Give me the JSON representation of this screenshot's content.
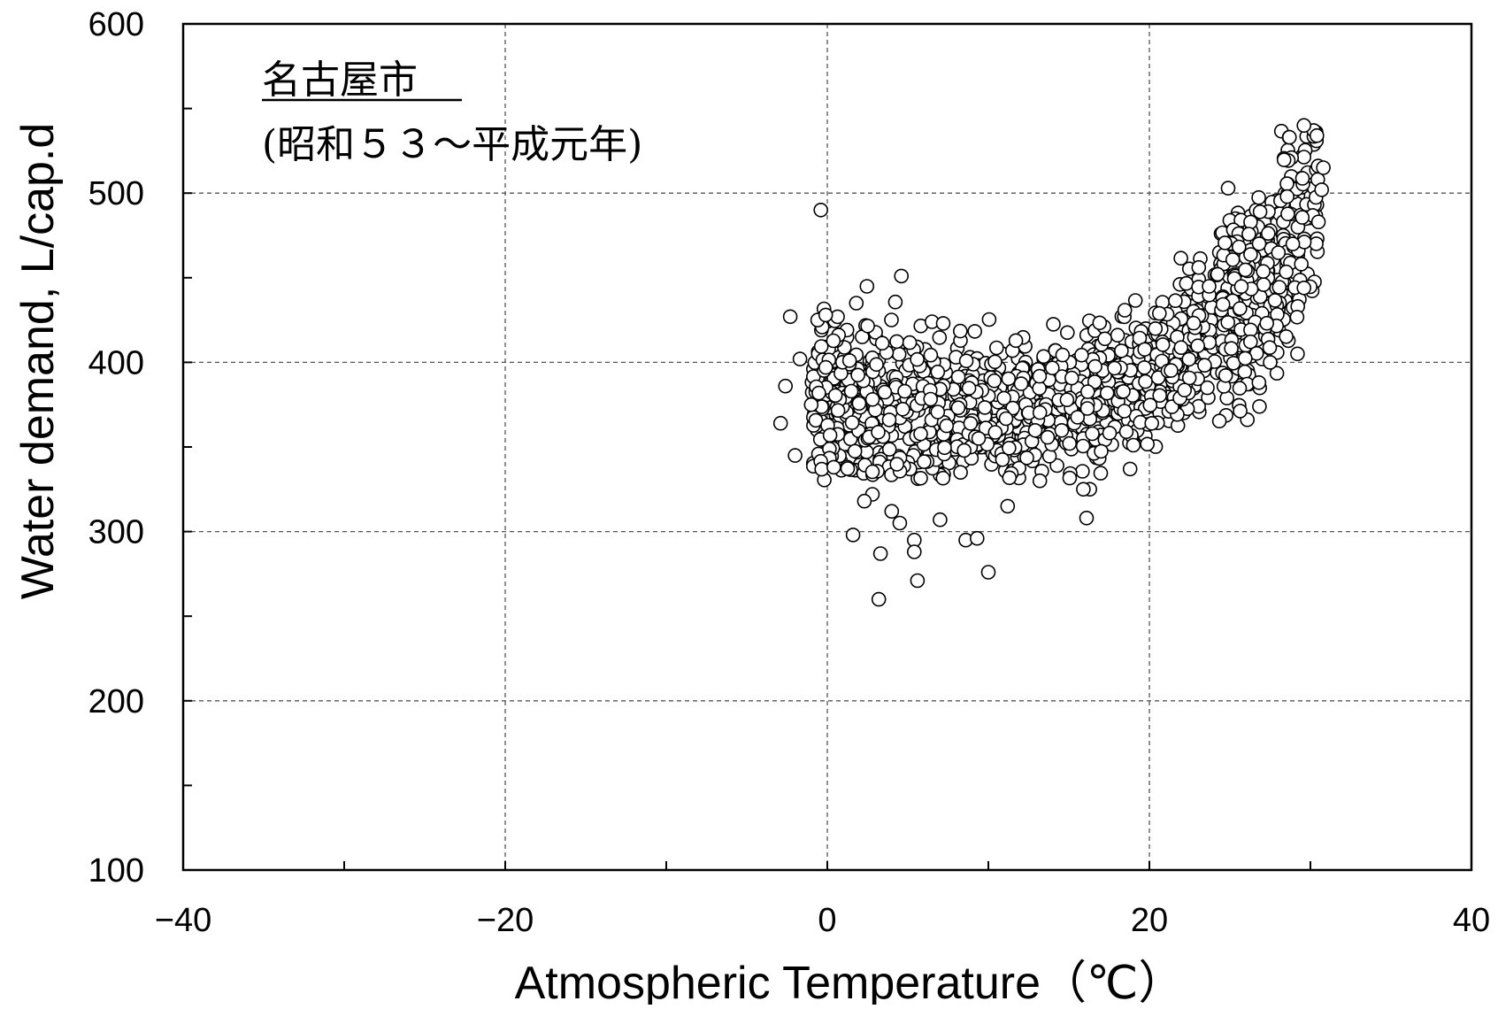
{
  "chart_data": {
    "type": "scatter",
    "title": "",
    "xlabel": "Atmospheric Temperature（℃）",
    "ylabel": "Water demand, L/cap.d",
    "xlim": [
      -40,
      40
    ],
    "ylim": [
      100,
      600
    ],
    "x_ticks": [
      -40,
      -20,
      0,
      20,
      40
    ],
    "x_tick_labels": [
      "−40",
      "−20",
      "0",
      "20",
      "40"
    ],
    "y_ticks": [
      100,
      200,
      300,
      400,
      500,
      600
    ],
    "y_tick_labels": [
      "100",
      "200",
      "300",
      "400",
      "500",
      "600"
    ],
    "grid": true,
    "grid_style": "dashed",
    "annotations": [
      {
        "text": "名古屋市",
        "underline": true
      },
      {
        "text": "(昭和５３～平成元年)"
      }
    ],
    "marker": "open-circle",
    "series": [
      {
        "points": [
          [
            -0.4,
            490
          ],
          [
            4.6,
            451
          ],
          [
            1.8,
            435
          ],
          [
            -2.3,
            427
          ],
          [
            -0.6,
            425
          ],
          [
            -0.1,
            428
          ],
          [
            -1.7,
            402
          ],
          [
            -2.6,
            386
          ],
          [
            -2.9,
            364
          ],
          [
            -2.0,
            345
          ],
          [
            -1.0,
            375
          ],
          [
            0.4,
            338
          ],
          [
            1.6,
            298
          ],
          [
            3.3,
            287
          ],
          [
            3.2,
            260
          ],
          [
            5.6,
            271
          ],
          [
            10.0,
            276
          ],
          [
            8.6,
            295
          ],
          [
            9.3,
            296
          ],
          [
            5.4,
            295
          ],
          [
            5.4,
            288
          ],
          [
            7.0,
            307
          ],
          [
            16.1,
            308
          ],
          [
            16.3,
            325
          ],
          [
            18.8,
            337
          ],
          [
            15.9,
            325
          ],
          [
            11.2,
            315
          ],
          [
            13.2,
            330
          ],
          [
            4.0,
            312
          ],
          [
            4.5,
            305
          ],
          [
            2.8,
            322
          ],
          [
            2.3,
            318
          ],
          [
            6.5,
            424
          ],
          [
            7.2,
            423
          ],
          [
            28.7,
            533
          ],
          [
            29.6,
            540
          ],
          [
            30.4,
            534
          ],
          [
            30.8,
            515
          ],
          [
            30.7,
            502
          ],
          [
            30.5,
            483
          ],
          [
            29.6,
            444
          ],
          [
            29.2,
            405
          ],
          [
            26.8,
            388
          ],
          [
            27.5,
            400
          ],
          [
            23.6,
            385
          ]
        ]
      }
    ]
  }
}
